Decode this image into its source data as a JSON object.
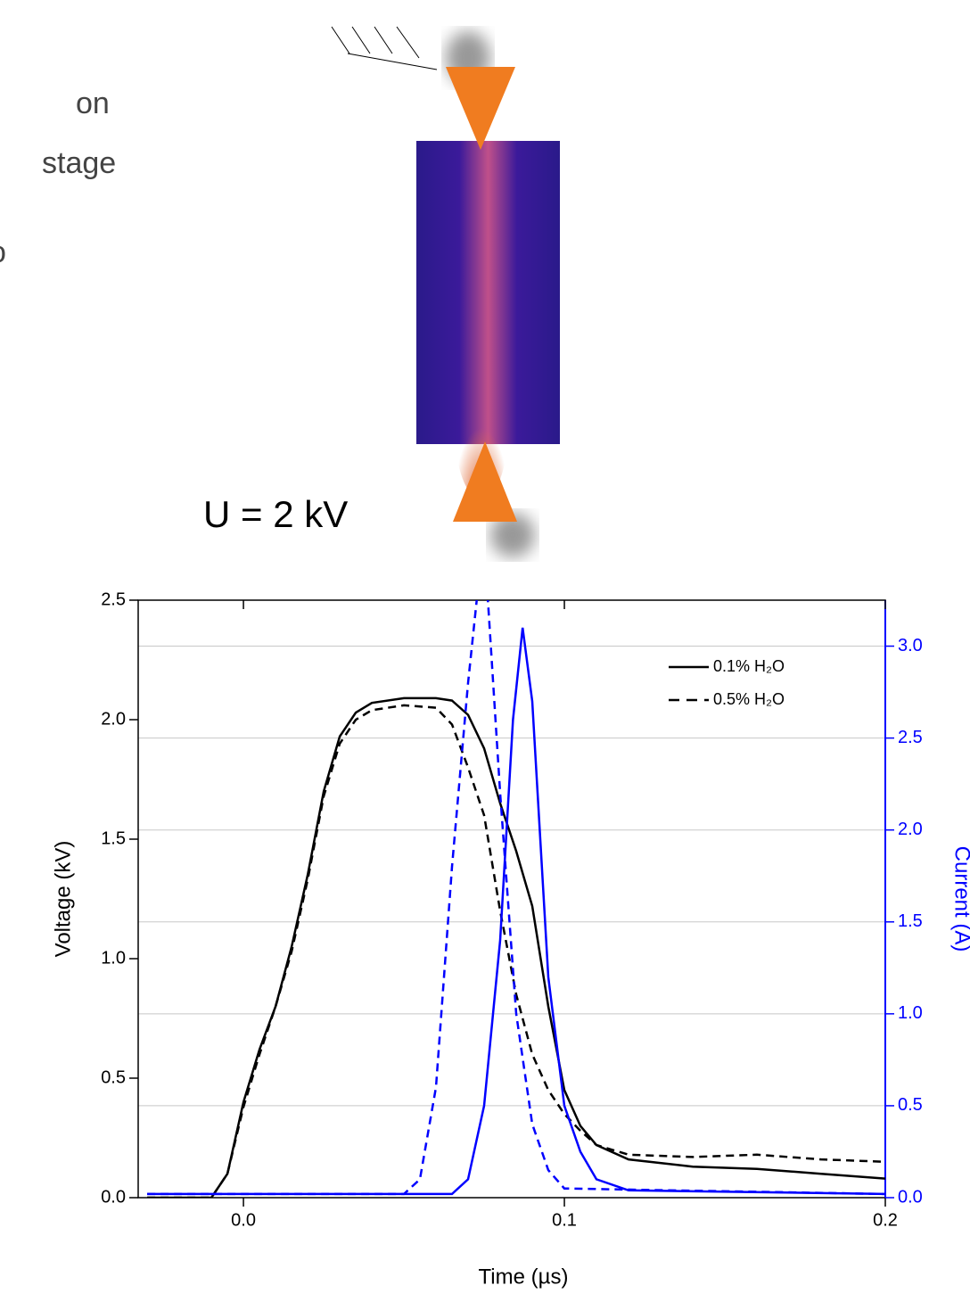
{
  "side_text": [
    "on",
    "stage",
    "o"
  ],
  "image_label": "U = 2 kV",
  "chart_data": {
    "type": "line",
    "x_label": "Time (µs)",
    "y_label": "Voltage (kV)",
    "y2_label": "Current (A)",
    "xlim": [
      -0.0328,
      0.2
    ],
    "ylim": [
      0,
      2.5
    ],
    "y2lim": [
      0,
      3.25
    ],
    "xticks": [
      {
        "value": 0,
        "label": "0.0"
      },
      {
        "value": 0.1,
        "label": "0.1"
      },
      {
        "value": 0.2,
        "label": "0.2"
      }
    ],
    "yticks": [
      {
        "value": 0,
        "label": "0.0"
      },
      {
        "value": 0.5,
        "label": "0.5"
      },
      {
        "value": 1,
        "label": "1.0"
      },
      {
        "value": 1.5,
        "label": "1.5"
      },
      {
        "value": 2,
        "label": "2.0"
      },
      {
        "value": 2.5,
        "label": "2.5"
      }
    ],
    "y2ticks": [
      {
        "value": 0,
        "label": "0.0"
      },
      {
        "value": 0.5,
        "label": "0.5"
      },
      {
        "value": 1,
        "label": "1.0"
      },
      {
        "value": 1.5,
        "label": "1.5"
      },
      {
        "value": 2,
        "label": "2.0"
      },
      {
        "value": 2.5,
        "label": "2.5"
      },
      {
        "value": 3,
        "label": "3.0"
      }
    ],
    "grid": true,
    "legend": "upper right",
    "y2_color": "#0000ff",
    "series": [
      {
        "name": "0.1% H₂O",
        "color": "#000000",
        "dash": false,
        "x": [
          -0.03,
          -0.01,
          -0.005,
          0,
          0.005,
          0.01,
          0.015,
          0.02,
          0.025,
          0.03,
          0.035,
          0.04,
          0.05,
          0.06,
          0.065,
          0.07,
          0.075,
          0.08,
          0.085,
          0.09,
          0.095,
          0.1,
          0.105,
          0.11,
          0.12,
          0.14,
          0.16,
          0.18,
          0.2
        ],
        "values": [
          0,
          0,
          0.1,
          0.4,
          0.62,
          0.8,
          1.05,
          1.35,
          1.7,
          1.93,
          2.03,
          2.07,
          2.09,
          2.09,
          2.08,
          2.02,
          1.88,
          1.65,
          1.45,
          1.22,
          0.8,
          0.45,
          0.3,
          0.22,
          0.16,
          0.13,
          0.12,
          0.1,
          0.08
        ]
      },
      {
        "name": "0.5% H₂O",
        "color": "#000000",
        "dash": true,
        "x": [
          -0.03,
          -0.01,
          -0.005,
          0,
          0.005,
          0.01,
          0.015,
          0.02,
          0.025,
          0.03,
          0.035,
          0.04,
          0.05,
          0.06,
          0.065,
          0.07,
          0.075,
          0.08,
          0.085,
          0.09,
          0.095,
          0.1,
          0.105,
          0.11,
          0.12,
          0.14,
          0.16,
          0.18,
          0.2
        ],
        "values": [
          0,
          0,
          0.1,
          0.38,
          0.6,
          0.8,
          1.03,
          1.33,
          1.68,
          1.9,
          2.0,
          2.04,
          2.06,
          2.05,
          1.98,
          1.8,
          1.6,
          1.2,
          0.85,
          0.6,
          0.45,
          0.35,
          0.28,
          0.22,
          0.18,
          0.17,
          0.18,
          0.16,
          0.15
        ]
      },
      {
        "color": "#0000ff",
        "dash": false,
        "axis": "y2",
        "x": [
          -0.03,
          0.065,
          0.07,
          0.075,
          0.08,
          0.084,
          0.087,
          0.09,
          0.095,
          0.1,
          0.105,
          0.11,
          0.12,
          0.2
        ],
        "values": [
          0.02,
          0.02,
          0.1,
          0.5,
          1.4,
          2.6,
          3.1,
          2.7,
          1.2,
          0.5,
          0.25,
          0.1,
          0.04,
          0.02
        ]
      },
      {
        "color": "#0000ff",
        "dash": true,
        "axis": "y2",
        "x": [
          -0.03,
          0.05,
          0.055,
          0.06,
          0.065,
          0.07,
          0.073,
          0.076,
          0.08,
          0.085,
          0.09,
          0.095,
          0.1,
          0.2
        ],
        "values": [
          0.02,
          0.02,
          0.1,
          0.6,
          1.8,
          2.8,
          3.3,
          3.3,
          2.2,
          1.0,
          0.4,
          0.15,
          0.05,
          0.02
        ]
      }
    ]
  }
}
